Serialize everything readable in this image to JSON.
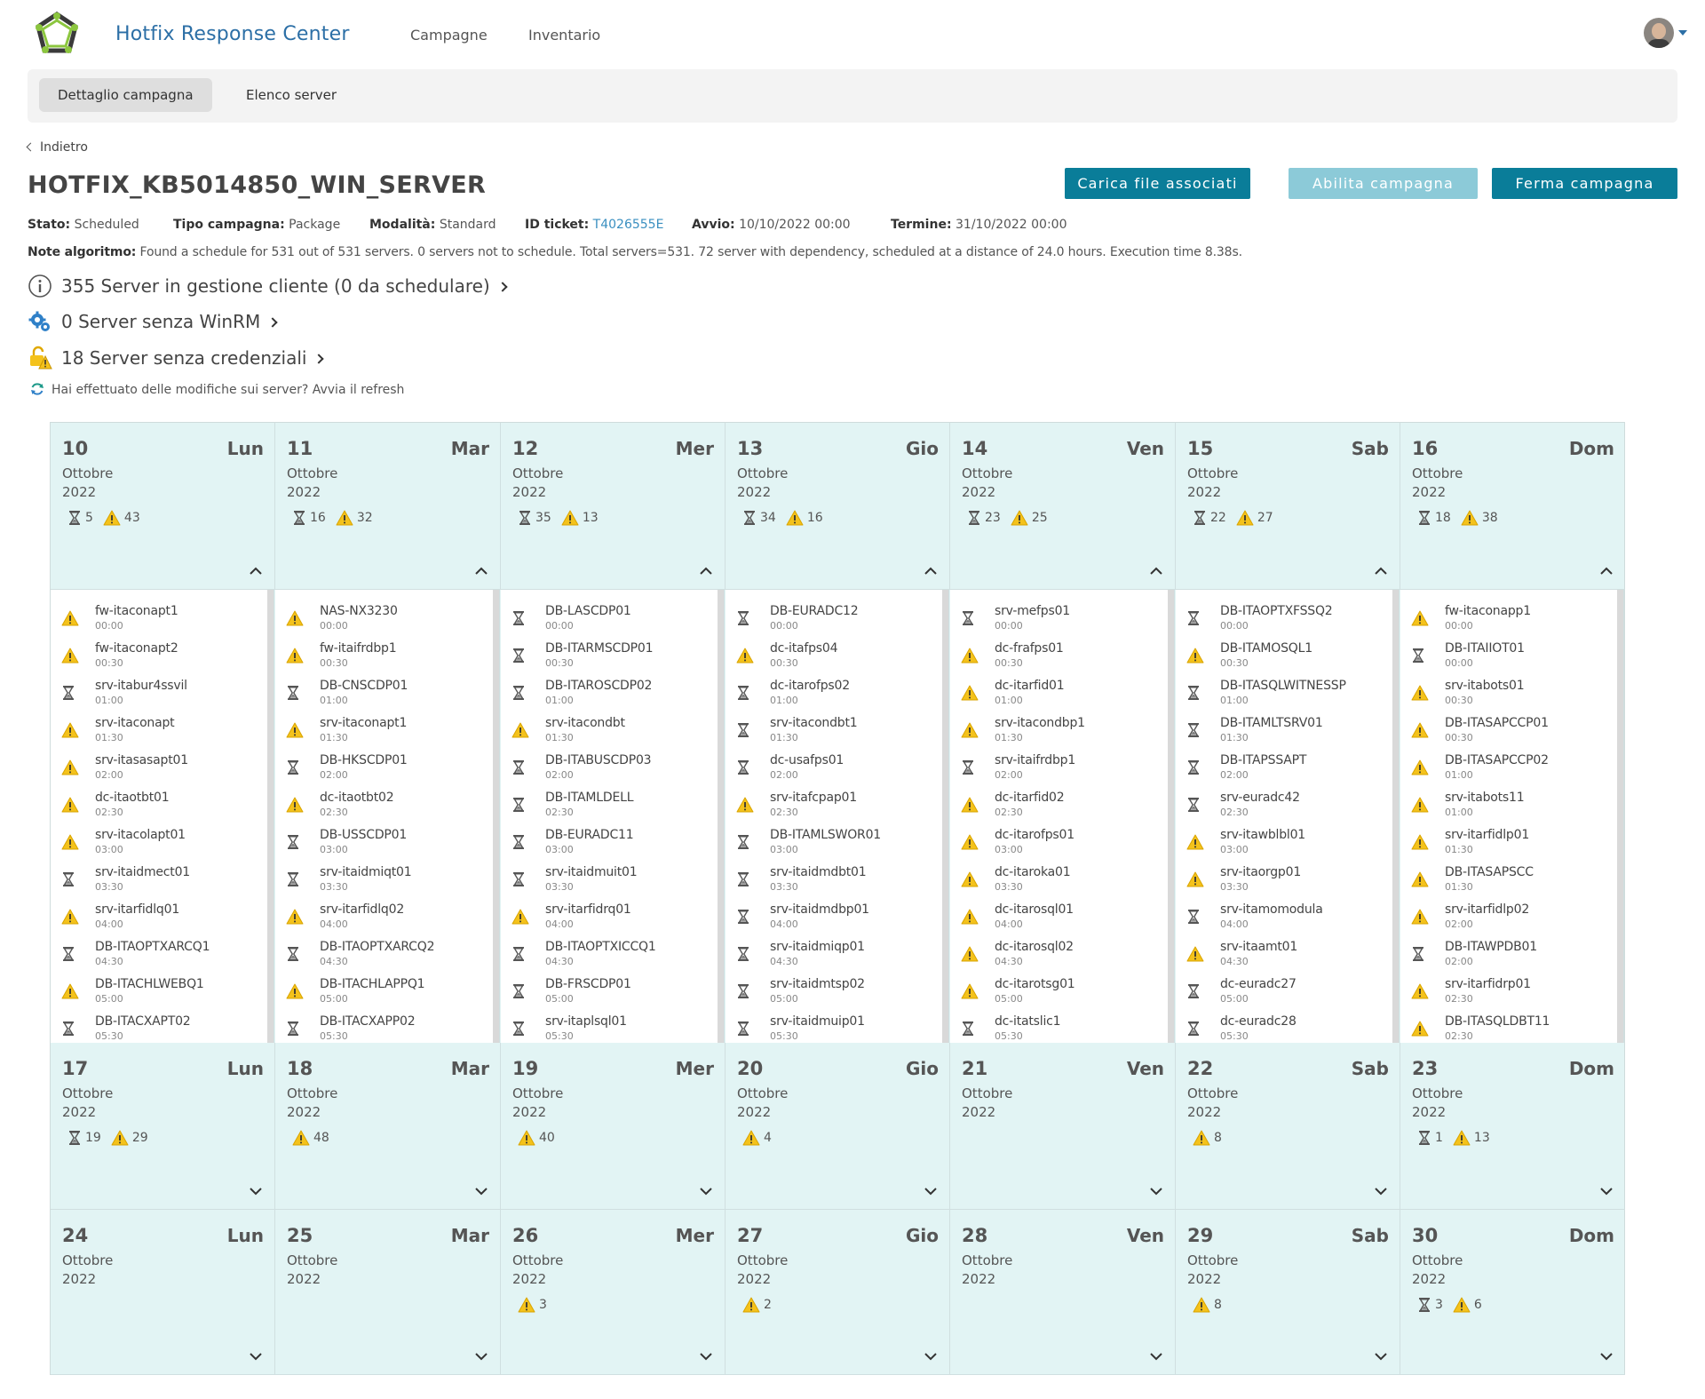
{
  "nav": {
    "brand": "Hotfix Response Center",
    "links": [
      "Campagne",
      "Inventario"
    ],
    "user_avatar_icon": "user-avatar",
    "colors": {
      "brand": "#2c6fa6"
    }
  },
  "subtabs": [
    "Dettaglio campagna",
    "Elenco server"
  ],
  "back_label": "Indietro",
  "title": "HOTFIX_KB5014850_WIN_SERVER",
  "buttons": {
    "upload": "Carica file associati",
    "enable": "Abilita campagna",
    "stop": "Ferma campagna",
    "colors": {
      "primary": "#0a7d99",
      "disabled": "#8ccad8"
    }
  },
  "meta": {
    "stato_label": "Stato:",
    "stato": "Scheduled",
    "tipo_label": "Tipo campagna:",
    "tipo": "Package",
    "modalita_label": "Modalità:",
    "modalita": "Standard",
    "ticket_label": "ID ticket:",
    "ticket": "T4026555E",
    "avvio_label": "Avvio:",
    "avvio": "10/10/2022 00:00",
    "termine_label": "Termine:",
    "termine": "31/10/2022 00:00"
  },
  "note": {
    "label": "Note algoritmo:",
    "text": "Found a schedule for 531 out of 531 servers. 0 servers not to schedule. Total servers=531. 72 server with dependency, scheduled at a distance of 24.0 hours. Execution time 8.38s."
  },
  "stats": [
    {
      "text": "355 Server in gestione cliente (0 da schedulare)",
      "icon": "info-icon"
    },
    {
      "text": "0 Server senza WinRM",
      "icon": "gears-icon"
    },
    {
      "text": "18 Server senza credenziali",
      "icon": "unlock-warning-icon"
    }
  ],
  "refresh_text": "Hai effettuato delle modifiche sui server? Avvia il refresh",
  "calendar": {
    "month": "Ottobre",
    "year": "2022",
    "weeks": [
      [
        {
          "num": "10",
          "wd": "Lun",
          "wait": "5",
          "warn": "43",
          "expanded": true
        },
        {
          "num": "11",
          "wd": "Mar",
          "wait": "16",
          "warn": "32",
          "expanded": true
        },
        {
          "num": "12",
          "wd": "Mer",
          "wait": "35",
          "warn": "13",
          "expanded": true
        },
        {
          "num": "13",
          "wd": "Gio",
          "wait": "34",
          "warn": "16",
          "expanded": true
        },
        {
          "num": "14",
          "wd": "Ven",
          "wait": "23",
          "warn": "25",
          "expanded": true
        },
        {
          "num": "15",
          "wd": "Sab",
          "wait": "22",
          "warn": "27",
          "expanded": true
        },
        {
          "num": "16",
          "wd": "Dom",
          "wait": "18",
          "warn": "38",
          "expanded": true
        }
      ],
      [
        {
          "num": "17",
          "wd": "Lun",
          "wait": "19",
          "warn": "29",
          "expanded": false
        },
        {
          "num": "18",
          "wd": "Mar",
          "wait": null,
          "warn": "48",
          "expanded": false
        },
        {
          "num": "19",
          "wd": "Mer",
          "wait": null,
          "warn": "40",
          "expanded": false
        },
        {
          "num": "20",
          "wd": "Gio",
          "wait": null,
          "warn": "4",
          "expanded": false
        },
        {
          "num": "21",
          "wd": "Ven",
          "wait": null,
          "warn": null,
          "expanded": false
        },
        {
          "num": "22",
          "wd": "Sab",
          "wait": null,
          "warn": "8",
          "expanded": false
        },
        {
          "num": "23",
          "wd": "Dom",
          "wait": "1",
          "warn": "13",
          "expanded": false
        }
      ],
      [
        {
          "num": "24",
          "wd": "Lun",
          "wait": null,
          "warn": null,
          "expanded": false
        },
        {
          "num": "25",
          "wd": "Mar",
          "wait": null,
          "warn": null,
          "expanded": false
        },
        {
          "num": "26",
          "wd": "Mer",
          "wait": null,
          "warn": "3",
          "expanded": false
        },
        {
          "num": "27",
          "wd": "Gio",
          "wait": null,
          "warn": "2",
          "expanded": false
        },
        {
          "num": "28",
          "wd": "Ven",
          "wait": null,
          "warn": null,
          "expanded": false
        },
        {
          "num": "29",
          "wd": "Sab",
          "wait": null,
          "warn": "8",
          "expanded": false
        },
        {
          "num": "30",
          "wd": "Dom",
          "wait": "3",
          "warn": "6",
          "expanded": false
        }
      ]
    ],
    "server_lists": [
      [
        {
          "s": "warn",
          "n": "fw-itaconapt1",
          "t": "00:00"
        },
        {
          "s": "warn",
          "n": "fw-itaconapt2",
          "t": "00:30"
        },
        {
          "s": "wait",
          "n": "srv-itabur4ssvil",
          "t": "01:00"
        },
        {
          "s": "warn",
          "n": "srv-itaconapt",
          "t": "01:30"
        },
        {
          "s": "warn",
          "n": "srv-itasasapt01",
          "t": "02:00"
        },
        {
          "s": "warn",
          "n": "dc-itaotbt01",
          "t": "02:30"
        },
        {
          "s": "warn",
          "n": "srv-itacolapt01",
          "t": "03:00"
        },
        {
          "s": "wait",
          "n": "srv-itaidmect01",
          "t": "03:30"
        },
        {
          "s": "warn",
          "n": "srv-itarfidlq01",
          "t": "04:00"
        },
        {
          "s": "wait",
          "n": "DB-ITAOPTXARCQ1",
          "t": "04:30"
        },
        {
          "s": "warn",
          "n": "DB-ITACHLWEBQ1",
          "t": "05:00"
        },
        {
          "s": "wait",
          "n": "DB-ITACXAPT02",
          "t": "05:30"
        }
      ],
      [
        {
          "s": "warn",
          "n": "NAS-NX3230",
          "t": "00:00"
        },
        {
          "s": "warn",
          "n": "fw-itaifrdbp1",
          "t": "00:30"
        },
        {
          "s": "wait",
          "n": "DB-CNSCDP01",
          "t": "01:00"
        },
        {
          "s": "warn",
          "n": "srv-itaconapt1",
          "t": "01:30"
        },
        {
          "s": "wait",
          "n": "DB-HKSCDP01",
          "t": "02:00"
        },
        {
          "s": "warn",
          "n": "dc-itaotbt02",
          "t": "02:30"
        },
        {
          "s": "wait",
          "n": "DB-USSCDP01",
          "t": "03:00"
        },
        {
          "s": "wait",
          "n": "srv-itaidmiqt01",
          "t": "03:30"
        },
        {
          "s": "warn",
          "n": "srv-itarfidlq02",
          "t": "04:00"
        },
        {
          "s": "wait",
          "n": "DB-ITAOPTXARCQ2",
          "t": "04:30"
        },
        {
          "s": "warn",
          "n": "DB-ITACHLAPPQ1",
          "t": "05:00"
        },
        {
          "s": "wait",
          "n": "DB-ITACXAPP02",
          "t": "05:30"
        }
      ],
      [
        {
          "s": "wait",
          "n": "DB-LASCDP01",
          "t": "00:00"
        },
        {
          "s": "wait",
          "n": "DB-ITARMSCDP01",
          "t": "00:30"
        },
        {
          "s": "wait",
          "n": "DB-ITAROSCDP02",
          "t": "01:00"
        },
        {
          "s": "warn",
          "n": "srv-itacondbt",
          "t": "01:30"
        },
        {
          "s": "wait",
          "n": "DB-ITABUSCDP03",
          "t": "02:00"
        },
        {
          "s": "wait",
          "n": "DB-ITAMLDELL",
          "t": "02:30"
        },
        {
          "s": "wait",
          "n": "DB-EURADC11",
          "t": "03:00"
        },
        {
          "s": "wait",
          "n": "srv-itaidmuit01",
          "t": "03:30"
        },
        {
          "s": "warn",
          "n": "srv-itarfidrq01",
          "t": "04:00"
        },
        {
          "s": "wait",
          "n": "DB-ITAOPTXICCQ1",
          "t": "04:30"
        },
        {
          "s": "wait",
          "n": "DB-FRSCDP01",
          "t": "05:00"
        },
        {
          "s": "wait",
          "n": "srv-itaplsql01",
          "t": "05:30"
        }
      ],
      [
        {
          "s": "wait",
          "n": "DB-EURADC12",
          "t": "00:00"
        },
        {
          "s": "warn",
          "n": "dc-itafps04",
          "t": "00:30"
        },
        {
          "s": "wait",
          "n": "dc-itarofps02",
          "t": "01:00"
        },
        {
          "s": "wait",
          "n": "srv-itacondbt1",
          "t": "01:30"
        },
        {
          "s": "wait",
          "n": "dc-usafps01",
          "t": "02:00"
        },
        {
          "s": "warn",
          "n": "srv-itafcpap01",
          "t": "02:30"
        },
        {
          "s": "wait",
          "n": "DB-ITAMLSWOR01",
          "t": "03:00"
        },
        {
          "s": "wait",
          "n": "srv-itaidmdbt01",
          "t": "03:30"
        },
        {
          "s": "wait",
          "n": "srv-itaidmdbp01",
          "t": "04:00"
        },
        {
          "s": "wait",
          "n": "srv-itaidmiqp01",
          "t": "04:30"
        },
        {
          "s": "wait",
          "n": "srv-itaidmtsp02",
          "t": "05:00"
        },
        {
          "s": "wait",
          "n": "srv-itaidmuip01",
          "t": "05:30"
        }
      ],
      [
        {
          "s": "wait",
          "n": "srv-mefps01",
          "t": "00:00"
        },
        {
          "s": "warn",
          "n": "dc-frafps01",
          "t": "00:30"
        },
        {
          "s": "warn",
          "n": "dc-itarfid01",
          "t": "01:00"
        },
        {
          "s": "warn",
          "n": "srv-itacondbp1",
          "t": "01:30"
        },
        {
          "s": "wait",
          "n": "srv-itaifrdbp1",
          "t": "02:00"
        },
        {
          "s": "warn",
          "n": "dc-itarfid02",
          "t": "02:30"
        },
        {
          "s": "warn",
          "n": "dc-itarofps01",
          "t": "03:00"
        },
        {
          "s": "warn",
          "n": "dc-itaroka01",
          "t": "03:30"
        },
        {
          "s": "warn",
          "n": "dc-itarosql01",
          "t": "04:00"
        },
        {
          "s": "warn",
          "n": "dc-itarosql02",
          "t": "04:30"
        },
        {
          "s": "warn",
          "n": "dc-itarotsg01",
          "t": "05:00"
        },
        {
          "s": "wait",
          "n": "dc-itatslic1",
          "t": "05:30"
        }
      ],
      [
        {
          "s": "wait",
          "n": "DB-ITAOPTXFSSQ2",
          "t": "00:00"
        },
        {
          "s": "warn",
          "n": "DB-ITAMOSQL1",
          "t": "00:30"
        },
        {
          "s": "wait",
          "n": "DB-ITASQLWITNESSP",
          "t": "01:00"
        },
        {
          "s": "wait",
          "n": "DB-ITAMLTSRV01",
          "t": "01:30"
        },
        {
          "s": "wait",
          "n": "DB-ITAPSSAPT",
          "t": "02:00"
        },
        {
          "s": "wait",
          "n": "srv-euradc42",
          "t": "02:30"
        },
        {
          "s": "warn",
          "n": "srv-itawblbl01",
          "t": "03:00"
        },
        {
          "s": "warn",
          "n": "srv-itaorgp01",
          "t": "03:30"
        },
        {
          "s": "wait",
          "n": "srv-itamomodula",
          "t": "04:00"
        },
        {
          "s": "warn",
          "n": "srv-itaamt01",
          "t": "04:30"
        },
        {
          "s": "wait",
          "n": "dc-euradc27",
          "t": "05:00"
        },
        {
          "s": "wait",
          "n": "dc-euradc28",
          "t": "05:30"
        }
      ],
      [
        {
          "s": "warn",
          "n": "fw-itaconapp1",
          "t": "00:00"
        },
        {
          "s": "wait",
          "n": "DB-ITAIIOT01",
          "t": "00:00"
        },
        {
          "s": "warn",
          "n": "srv-itabots01",
          "t": "00:30"
        },
        {
          "s": "warn",
          "n": "DB-ITASAPCCP01",
          "t": "00:30"
        },
        {
          "s": "warn",
          "n": "DB-ITASAPCCP02",
          "t": "01:00"
        },
        {
          "s": "warn",
          "n": "srv-itabots11",
          "t": "01:00"
        },
        {
          "s": "warn",
          "n": "srv-itarfidlp01",
          "t": "01:30"
        },
        {
          "s": "warn",
          "n": "DB-ITASAPSCC",
          "t": "01:30"
        },
        {
          "s": "warn",
          "n": "srv-itarfidlp02",
          "t": "02:00"
        },
        {
          "s": "wait",
          "n": "DB-ITAWPDB01",
          "t": "02:00"
        },
        {
          "s": "warn",
          "n": "srv-itarfidrp01",
          "t": "02:30"
        },
        {
          "s": "warn",
          "n": "DB-ITASQLDBT11",
          "t": "02:30"
        }
      ]
    ],
    "colors": {
      "day_bg": "#e2f4f4",
      "warn": "#f4c21b"
    }
  }
}
